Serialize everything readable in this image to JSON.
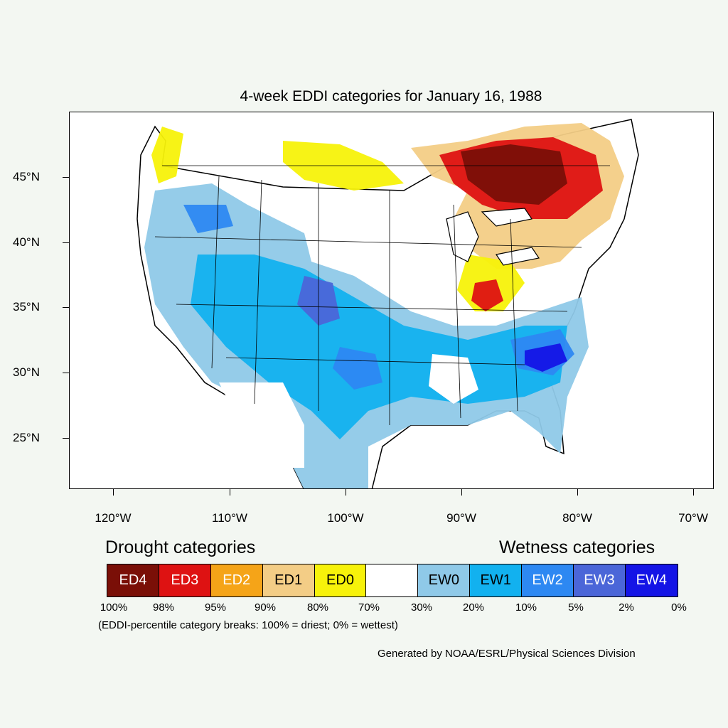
{
  "title": "4-week EDDI categories for January 16, 1988",
  "y_axis_labels": [
    "45°N",
    "40°N",
    "35°N",
    "30°N",
    "25°N"
  ],
  "x_axis_labels": [
    "120°W",
    "110°W",
    "100°W",
    "90°W",
    "80°W",
    "70°W"
  ],
  "drought_heading": "Drought categories",
  "wetness_heading": "Wetness categories",
  "legend": [
    {
      "label": "ED4",
      "color": "#7a0f07",
      "text_color": "#ffffff"
    },
    {
      "label": "ED3",
      "color": "#de1212",
      "text_color": "#ffffff"
    },
    {
      "label": "ED2",
      "color": "#f5a418",
      "text_color": "#ffffff"
    },
    {
      "label": "ED1",
      "color": "#f3cd86",
      "text_color": "#000000"
    },
    {
      "label": "ED0",
      "color": "#f7f20a",
      "text_color": "#000000"
    },
    {
      "label": "",
      "color": "#ffffff",
      "text_color": "#000000"
    },
    {
      "label": "EW0",
      "color": "#8fc9e8",
      "text_color": "#000000"
    },
    {
      "label": "EW1",
      "color": "#12b1ef",
      "text_color": "#000000"
    },
    {
      "label": "EW2",
      "color": "#2d88f2",
      "text_color": "#ffffff"
    },
    {
      "label": "EW3",
      "color": "#4b66d8",
      "text_color": "#ffffff"
    },
    {
      "label": "EW4",
      "color": "#1414e6",
      "text_color": "#ffffff"
    }
  ],
  "percent_breaks": [
    "100%",
    "98%",
    "95%",
    "90%",
    "80%",
    "70%",
    "30%",
    "20%",
    "10%",
    "5%",
    "2%",
    "0%"
  ],
  "note": "(EDDI-percentile category breaks: 100% = driest; 0% = wettest)",
  "credit": "Generated by NOAA/ESRL/Physical Sciences Division"
}
